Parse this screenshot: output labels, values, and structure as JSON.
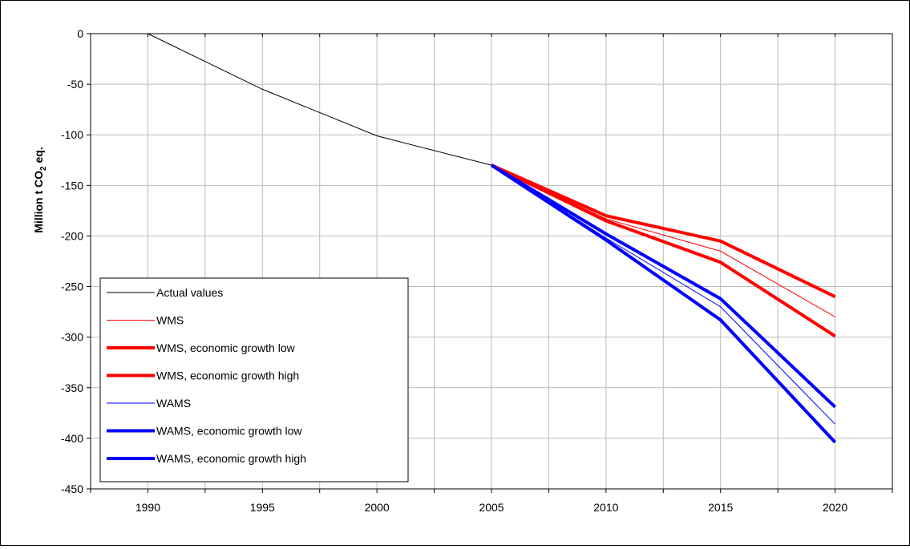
{
  "chart_data": {
    "type": "line",
    "title": "",
    "xlabel": "",
    "ylabel_main": "Million t CO",
    "ylabel_sub": "2",
    "ylabel_tail": " eq.",
    "xlim": [
      1987.5,
      2022.5
    ],
    "ylim": [
      -450,
      0
    ],
    "xticks": [
      1990,
      1995,
      2000,
      2005,
      2010,
      2015,
      2020
    ],
    "yticks": [
      0,
      -50,
      -100,
      -150,
      -200,
      -250,
      -300,
      -350,
      -400,
      -450
    ],
    "grid": true,
    "legend_position": "bottom-left",
    "series": [
      {
        "name": "Actual values",
        "color": "#000000",
        "style": "thin",
        "points": [
          [
            1990,
            0
          ],
          [
            1995,
            -55
          ],
          [
            2000,
            -101
          ],
          [
            2005,
            -130
          ]
        ]
      },
      {
        "name": "WMS",
        "color": "#ff0000",
        "style": "thin",
        "points": [
          [
            2005,
            -130
          ],
          [
            2010,
            -183
          ],
          [
            2015,
            -215
          ],
          [
            2020,
            -280
          ]
        ]
      },
      {
        "name": "WMS, economic growth low",
        "color": "#ff0000",
        "style": "thick",
        "points": [
          [
            2005,
            -130
          ],
          [
            2010,
            -180
          ],
          [
            2015,
            -205
          ],
          [
            2020,
            -260
          ]
        ]
      },
      {
        "name": "WMS, economic growth high",
        "color": "#ff0000",
        "style": "thick",
        "points": [
          [
            2005,
            -130
          ],
          [
            2010,
            -185
          ],
          [
            2015,
            -226
          ],
          [
            2020,
            -299
          ]
        ]
      },
      {
        "name": "WAMS",
        "color": "#0000ff",
        "style": "thin",
        "points": [
          [
            2005,
            -130
          ],
          [
            2010,
            -202
          ],
          [
            2015,
            -270
          ],
          [
            2020,
            -386
          ]
        ]
      },
      {
        "name": "WAMS, economic growth low",
        "color": "#0000ff",
        "style": "thick",
        "points": [
          [
            2005,
            -130
          ],
          [
            2010,
            -198
          ],
          [
            2015,
            -262
          ],
          [
            2020,
            -369
          ]
        ]
      },
      {
        "name": "WAMS, economic growth high",
        "color": "#0000ff",
        "style": "thick",
        "points": [
          [
            2005,
            -130
          ],
          [
            2010,
            -204
          ],
          [
            2015,
            -283
          ],
          [
            2020,
            -404
          ]
        ]
      }
    ]
  }
}
